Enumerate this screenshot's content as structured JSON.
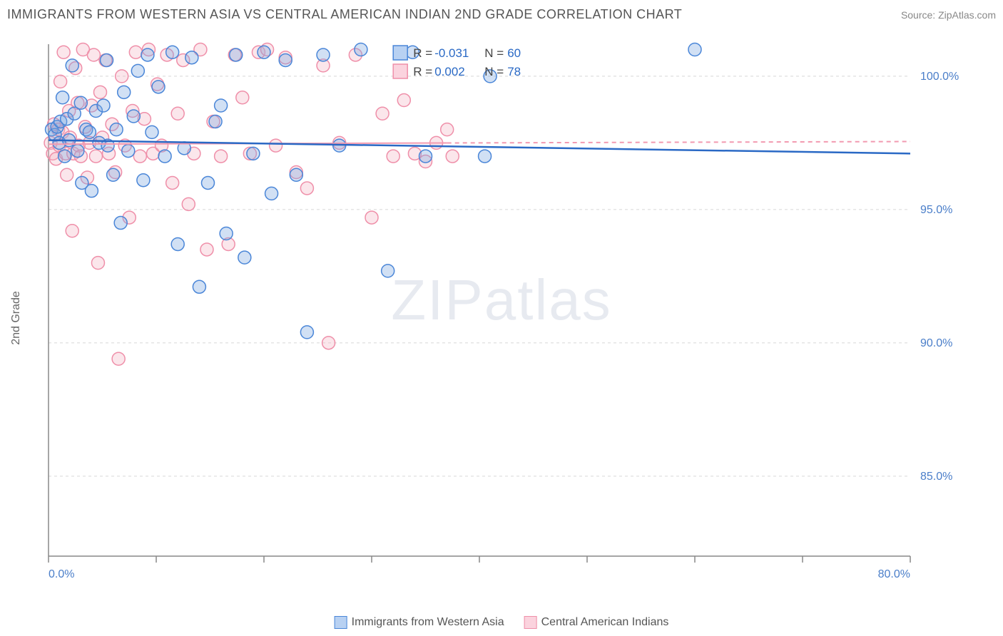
{
  "title": "IMMIGRANTS FROM WESTERN ASIA VS CENTRAL AMERICAN INDIAN 2ND GRADE CORRELATION CHART",
  "source": {
    "label": "Source: ",
    "link_text": "ZipAtlas.com"
  },
  "y_axis_label": "2nd Grade",
  "watermark": "ZIPatlas",
  "chart": {
    "type": "scatter",
    "xlim": [
      0,
      80
    ],
    "ylim": [
      82,
      101.2
    ],
    "x_ticks": [
      0,
      10,
      20,
      30,
      40,
      50,
      60,
      70,
      80
    ],
    "x_tick_labels": {
      "0": "0.0%",
      "80": "80.0%"
    },
    "y_ticks": [
      85,
      90,
      95,
      100
    ],
    "y_tick_labels": [
      "85.0%",
      "90.0%",
      "95.0%",
      "100.0%"
    ],
    "grid_color": "#d8d8d8",
    "axis_color": "#888888",
    "background_color": "#ffffff",
    "tick_label_color": "#4a7ec9",
    "marker_radius": 9,
    "marker_stroke_width": 1.5,
    "marker_fill_opacity": 0.35,
    "series": [
      {
        "name": "Immigrants from Western Asia",
        "color": "#7aa7e0",
        "stroke": "#4a86d8",
        "regression": {
          "x1": 0,
          "y1": 97.6,
          "x2": 80,
          "y2": 97.1,
          "color": "#2a69c5",
          "width": 2.5,
          "dash": null
        },
        "R": "-0.031",
        "N": "60",
        "points": [
          [
            0.3,
            98.0
          ],
          [
            0.6,
            97.8
          ],
          [
            0.8,
            98.1
          ],
          [
            1.0,
            97.5
          ],
          [
            1.1,
            98.3
          ],
          [
            1.3,
            99.2
          ],
          [
            1.5,
            97.0
          ],
          [
            1.7,
            98.4
          ],
          [
            1.9,
            97.6
          ],
          [
            2.2,
            100.4
          ],
          [
            2.4,
            98.6
          ],
          [
            2.7,
            97.2
          ],
          [
            3.0,
            99.0
          ],
          [
            3.1,
            96.0
          ],
          [
            3.5,
            98.0
          ],
          [
            3.8,
            97.9
          ],
          [
            4.0,
            95.7
          ],
          [
            4.4,
            98.7
          ],
          [
            4.7,
            97.5
          ],
          [
            5.1,
            98.9
          ],
          [
            5.4,
            100.6
          ],
          [
            5.5,
            97.4
          ],
          [
            6.0,
            96.3
          ],
          [
            6.3,
            98.0
          ],
          [
            6.7,
            94.5
          ],
          [
            7.0,
            99.4
          ],
          [
            7.4,
            97.2
          ],
          [
            7.9,
            98.5
          ],
          [
            8.3,
            100.2
          ],
          [
            8.8,
            96.1
          ],
          [
            9.2,
            100.8
          ],
          [
            9.6,
            97.9
          ],
          [
            10.2,
            99.6
          ],
          [
            10.8,
            97.0
          ],
          [
            11.5,
            100.9
          ],
          [
            12.0,
            93.7
          ],
          [
            12.6,
            97.3
          ],
          [
            13.3,
            100.7
          ],
          [
            14.0,
            92.1
          ],
          [
            14.8,
            96.0
          ],
          [
            15.5,
            98.3
          ],
          [
            16.0,
            98.9
          ],
          [
            16.5,
            94.1
          ],
          [
            17.4,
            100.8
          ],
          [
            18.2,
            93.2
          ],
          [
            19.0,
            97.1
          ],
          [
            20.0,
            100.9
          ],
          [
            20.7,
            95.6
          ],
          [
            22.0,
            100.6
          ],
          [
            23.0,
            96.3
          ],
          [
            24.0,
            90.4
          ],
          [
            25.5,
            100.8
          ],
          [
            27.0,
            97.4
          ],
          [
            29.0,
            101.0
          ],
          [
            31.5,
            92.7
          ],
          [
            33.8,
            100.9
          ],
          [
            35.0,
            97.0
          ],
          [
            40.5,
            97.0
          ],
          [
            41.0,
            100.0
          ],
          [
            60.0,
            101.0
          ]
        ]
      },
      {
        "name": "Central American Indians",
        "color": "#f4b8c7",
        "stroke": "#ef8fa9",
        "regression": {
          "x1": 0,
          "y1": 97.45,
          "x2": 80,
          "y2": 97.55,
          "color": "#f29ab0",
          "width": 2,
          "solid_until_x": 37,
          "dash": "6 5"
        },
        "R": "0.002",
        "N": "78",
        "points": [
          [
            0.2,
            97.5
          ],
          [
            0.4,
            97.1
          ],
          [
            0.5,
            98.2
          ],
          [
            0.7,
            96.9
          ],
          [
            0.9,
            98.0
          ],
          [
            1.0,
            97.4
          ],
          [
            1.1,
            99.8
          ],
          [
            1.3,
            97.9
          ],
          [
            1.4,
            100.9
          ],
          [
            1.6,
            97.1
          ],
          [
            1.7,
            96.3
          ],
          [
            1.9,
            98.7
          ],
          [
            2.0,
            97.7
          ],
          [
            2.2,
            94.2
          ],
          [
            2.3,
            97.1
          ],
          [
            2.5,
            100.3
          ],
          [
            2.7,
            99.0
          ],
          [
            2.8,
            97.4
          ],
          [
            3.0,
            97.0
          ],
          [
            3.2,
            101.0
          ],
          [
            3.4,
            98.1
          ],
          [
            3.6,
            96.2
          ],
          [
            3.8,
            97.5
          ],
          [
            4.0,
            98.9
          ],
          [
            4.2,
            100.8
          ],
          [
            4.4,
            97.0
          ],
          [
            4.6,
            93.0
          ],
          [
            4.8,
            99.4
          ],
          [
            5.0,
            97.7
          ],
          [
            5.3,
            100.6
          ],
          [
            5.6,
            97.1
          ],
          [
            5.9,
            98.2
          ],
          [
            6.2,
            96.4
          ],
          [
            6.5,
            89.4
          ],
          [
            6.8,
            100.0
          ],
          [
            7.1,
            97.4
          ],
          [
            7.5,
            94.7
          ],
          [
            7.8,
            98.7
          ],
          [
            8.1,
            100.9
          ],
          [
            8.5,
            97.0
          ],
          [
            8.9,
            98.4
          ],
          [
            9.3,
            101.0
          ],
          [
            9.7,
            97.1
          ],
          [
            10.1,
            99.7
          ],
          [
            10.5,
            97.4
          ],
          [
            11.0,
            100.8
          ],
          [
            11.5,
            96.0
          ],
          [
            12.0,
            98.6
          ],
          [
            12.5,
            100.6
          ],
          [
            13.0,
            95.2
          ],
          [
            13.5,
            97.1
          ],
          [
            14.1,
            101.0
          ],
          [
            14.7,
            93.5
          ],
          [
            15.3,
            98.3
          ],
          [
            16.0,
            97.0
          ],
          [
            16.7,
            93.7
          ],
          [
            17.3,
            100.8
          ],
          [
            18.0,
            99.2
          ],
          [
            18.7,
            97.1
          ],
          [
            19.5,
            100.9
          ],
          [
            20.3,
            101.0
          ],
          [
            21.1,
            97.4
          ],
          [
            22.0,
            100.7
          ],
          [
            23.0,
            96.4
          ],
          [
            24.0,
            95.8
          ],
          [
            25.5,
            100.4
          ],
          [
            26.0,
            90.0
          ],
          [
            27.0,
            97.5
          ],
          [
            28.5,
            100.8
          ],
          [
            30.0,
            94.7
          ],
          [
            31.0,
            98.6
          ],
          [
            32.0,
            97.0
          ],
          [
            33.0,
            99.1
          ],
          [
            34.0,
            97.1
          ],
          [
            35.0,
            96.8
          ],
          [
            36.0,
            97.5
          ],
          [
            37.0,
            98.0
          ],
          [
            37.5,
            97.0
          ]
        ]
      }
    ],
    "legend_box": {
      "rows": [
        {
          "swatch_fill": "#b8d1f2",
          "swatch_stroke": "#4a86d8",
          "R_label": "R =",
          "R_val": "-0.031",
          "N_label": "N =",
          "N_val": "60"
        },
        {
          "swatch_fill": "#fbd3de",
          "swatch_stroke": "#ef8fa9",
          "R_label": "R =",
          "R_val": "0.002",
          "N_label": "N =",
          "N_val": "78"
        }
      ]
    }
  },
  "bottom_legend": [
    {
      "label": "Immigrants from Western Asia",
      "fill": "#b8d1f2",
      "stroke": "#4a86d8"
    },
    {
      "label": "Central American Indians",
      "fill": "#fbd3de",
      "stroke": "#ef8fa9"
    }
  ]
}
